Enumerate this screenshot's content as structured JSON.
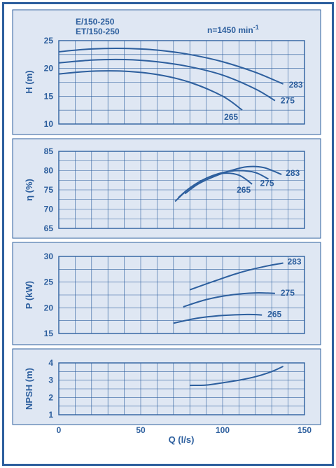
{
  "header": {
    "model_line1": "E/150-250",
    "model_line2": "ET/150-250",
    "speed_text": "n=1450 min",
    "speed_exp": "-1"
  },
  "colors": {
    "ink": "#2d5f9e",
    "panel_bg": "#dfe7f3",
    "page_bg": "#ffffff"
  },
  "xaxis": {
    "label": "Q (l/s)",
    "min": 0,
    "max": 150,
    "ticks": [
      0,
      50,
      100,
      150
    ]
  },
  "chart_data": [
    {
      "id": "head",
      "type": "line",
      "ylabel": "H (m)",
      "xlim": [
        0,
        150
      ],
      "ylim": [
        10,
        25
      ],
      "yticks": [
        10,
        15,
        20,
        25
      ],
      "grid": true,
      "series": [
        {
          "name": "283",
          "x": [
            0,
            20,
            40,
            60,
            80,
            100,
            120,
            137
          ],
          "y": [
            23.0,
            23.5,
            23.6,
            23.3,
            22.5,
            21.2,
            19.3,
            17.2
          ]
        },
        {
          "name": "275",
          "x": [
            0,
            20,
            40,
            60,
            80,
            100,
            120,
            132
          ],
          "y": [
            21.0,
            21.5,
            21.6,
            21.2,
            20.3,
            18.8,
            16.3,
            14.2
          ]
        },
        {
          "name": "265",
          "x": [
            0,
            20,
            40,
            60,
            80,
            100,
            112
          ],
          "y": [
            19.0,
            19.5,
            19.5,
            18.9,
            17.5,
            15.0,
            12.5
          ]
        }
      ]
    },
    {
      "id": "efficiency",
      "type": "line",
      "ylabel": "η (%)",
      "xlim": [
        0,
        150
      ],
      "ylim": [
        65,
        85
      ],
      "yticks": [
        65,
        70,
        75,
        80,
        85
      ],
      "grid": true,
      "series": [
        {
          "name": "283",
          "x": [
            77,
            85,
            95,
            105,
            115,
            125,
            136
          ],
          "y": [
            74.0,
            76.5,
            78.5,
            80.0,
            81.0,
            80.8,
            79.0
          ]
        },
        {
          "name": "275",
          "x": [
            73,
            80,
            90,
            100,
            110,
            120,
            128
          ],
          "y": [
            73.0,
            75.5,
            78.0,
            79.5,
            80.0,
            79.5,
            77.8
          ]
        },
        {
          "name": "265",
          "x": [
            71,
            80,
            90,
            100,
            110,
            118
          ],
          "y": [
            72.0,
            75.5,
            78.0,
            79.3,
            78.8,
            76.5
          ]
        }
      ]
    },
    {
      "id": "power",
      "type": "line",
      "ylabel": "P (kW)",
      "xlim": [
        0,
        150
      ],
      "ylim": [
        15,
        30
      ],
      "yticks": [
        15,
        20,
        25,
        30
      ],
      "grid": true,
      "series": [
        {
          "name": "283",
          "x": [
            80,
            95,
            110,
            125,
            137
          ],
          "y": [
            23.5,
            25.2,
            26.8,
            28.0,
            28.7
          ]
        },
        {
          "name": "275",
          "x": [
            76,
            90,
            105,
            120,
            132
          ],
          "y": [
            20.2,
            21.6,
            22.5,
            22.9,
            22.8
          ]
        },
        {
          "name": "265",
          "x": [
            70,
            85,
            100,
            115,
            124
          ],
          "y": [
            17.0,
            18.0,
            18.5,
            18.7,
            18.6
          ]
        }
      ]
    },
    {
      "id": "npsh",
      "type": "line",
      "ylabel": "NPSH (m)",
      "xlim": [
        0,
        150
      ],
      "ylim": [
        1,
        4
      ],
      "yticks": [
        1,
        2,
        3,
        4
      ],
      "grid": true,
      "series": [
        {
          "x": [
            80,
            90,
            100,
            110,
            120,
            130,
            137
          ],
          "y": [
            2.7,
            2.72,
            2.85,
            3.0,
            3.2,
            3.5,
            3.8
          ]
        }
      ]
    }
  ]
}
